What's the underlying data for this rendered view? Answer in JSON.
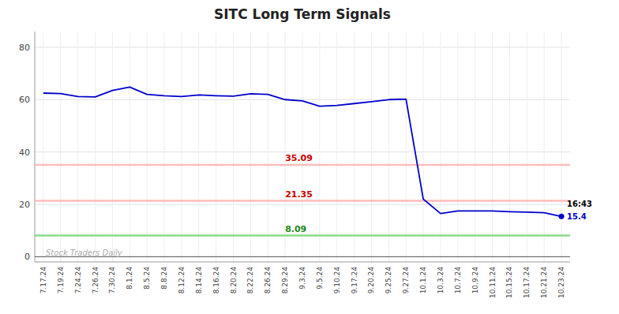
{
  "chart_data": {
    "type": "line",
    "title": "SITC Long Term Signals",
    "categories": [
      "7.17.24",
      "7.19.24",
      "7.24.24",
      "7.26.24",
      "7.30.24",
      "8.1.24",
      "8.5.24",
      "8.8.24",
      "8.12.24",
      "8.14.24",
      "8.16.24",
      "8.20.24",
      "8.22.24",
      "8.26.24",
      "8.29.24",
      "9.3.24",
      "9.5.24",
      "9.10.24",
      "9.17.24",
      "9.20.24",
      "9.25.24",
      "9.27.24",
      "10.1.24",
      "10.3.24",
      "10.7.24",
      "10.9.24",
      "10.11.24",
      "10.15.24",
      "10.17.24",
      "10.21.24",
      "10.23.24"
    ],
    "values": [
      62.5,
      62.3,
      61.2,
      61.0,
      63.5,
      64.8,
      62.0,
      61.5,
      61.2,
      61.8,
      61.5,
      61.3,
      62.2,
      62.0,
      60.0,
      59.5,
      57.5,
      57.8,
      58.5,
      59.2,
      60.0,
      60.2,
      22.0,
      16.5,
      17.5,
      17.5,
      17.5,
      17.2,
      17.0,
      16.8,
      15.4
    ],
    "color": "#0000cc",
    "ylim": [
      -2,
      86
    ],
    "yticks": [
      0,
      20,
      40,
      60,
      80
    ],
    "grid": true,
    "reference_lines": [
      {
        "value": 0,
        "color": "#555555"
      },
      {
        "value": 35.09,
        "color": "#ffbbbb",
        "label_color": "#cc0000"
      },
      {
        "value": 21.35,
        "color": "#ffbbbb",
        "label_color": "#cc0000"
      },
      {
        "value": 8.09,
        "color": "#88dd88",
        "label_color": "#228822"
      }
    ],
    "annotations": [
      "16:43",
      "15.4",
      "Stock Traders Daily"
    ]
  }
}
